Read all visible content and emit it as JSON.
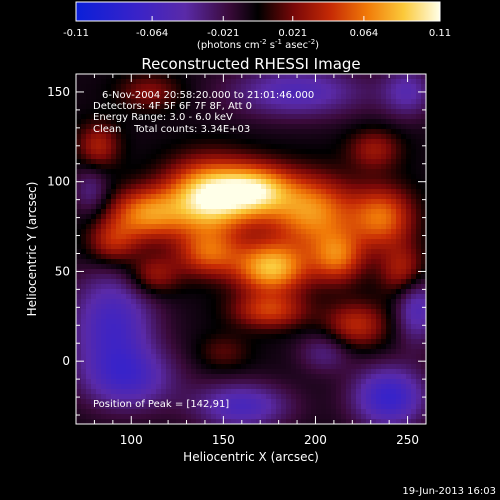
{
  "colorbar": {
    "tick_labels": [
      "-0.11",
      "-0.064",
      "-0.021",
      "0.021",
      "0.064",
      "0.11"
    ],
    "tick_values": [
      -0.11,
      -0.064,
      -0.021,
      0.021,
      0.064,
      0.11
    ],
    "range": [
      -0.11,
      0.11
    ],
    "unit_label": "(photons cm",
    "unit_exp1": "-2",
    "unit_mid": " s",
    "unit_exp2": "-1",
    "unit_tail": " asec",
    "unit_exp3": "-2",
    "unit_close": ")"
  },
  "title": "Reconstructed RHESSI Image",
  "annotations": {
    "time_range": "6-Nov-2004 20:58:20.000 to 21:01:46.000",
    "detectors": "Detectors: 4F 5F 6F 7F 8F, Att 0",
    "energy": "Energy Range: 3.0 - 6.0 keV",
    "clean": "Clean    Total counts: 3.34E+03",
    "peak": "Position of Peak = [142,91]"
  },
  "footer_timestamp": "19-Jun-2013 16:03",
  "colors": {
    "palette": [
      "#0a1fd9",
      "#3a23c8",
      "#5a2aa8",
      "#3a0a3a",
      "#000000",
      "#7a0808",
      "#c62a05",
      "#f17a08",
      "#fbc93a",
      "#ffffe8"
    ]
  },
  "chart_data": {
    "type": "heatmap",
    "title": "Reconstructed RHESSI Image",
    "xlabel": "Heliocentric X (arcsec)",
    "ylabel": "Heliocentric Y (arcsec)",
    "xlim": [
      70,
      260
    ],
    "ylim": [
      -35,
      160
    ],
    "xticks": [
      100,
      150,
      200,
      250
    ],
    "yticks": [
      0,
      50,
      100,
      150
    ],
    "xtick_labels": [
      "100",
      "150",
      "200",
      "250"
    ],
    "ytick_labels": [
      "0",
      "50",
      "100",
      "150"
    ],
    "value_range": [
      -0.11,
      0.11
    ],
    "peak_position": [
      142,
      91
    ],
    "grid": false,
    "sources": [
      {
        "x": 142,
        "y": 91,
        "sx": 16,
        "sy": 14,
        "amp": 0.11
      },
      {
        "x": 108,
        "y": 82,
        "sx": 14,
        "sy": 10,
        "amp": 0.07
      },
      {
        "x": 168,
        "y": 95,
        "sx": 14,
        "sy": 10,
        "amp": 0.085
      },
      {
        "x": 198,
        "y": 83,
        "sx": 16,
        "sy": 14,
        "amp": 0.075
      },
      {
        "x": 236,
        "y": 80,
        "sx": 12,
        "sy": 12,
        "amp": 0.065
      },
      {
        "x": 176,
        "y": 52,
        "sx": 14,
        "sy": 10,
        "amp": 0.09
      },
      {
        "x": 142,
        "y": 60,
        "sx": 12,
        "sy": 9,
        "amp": 0.055
      },
      {
        "x": 212,
        "y": 58,
        "sx": 10,
        "sy": 10,
        "amp": 0.06
      },
      {
        "x": 248,
        "y": 50,
        "sx": 9,
        "sy": 10,
        "amp": 0.045
      },
      {
        "x": 112,
        "y": 48,
        "sx": 10,
        "sy": 8,
        "amp": 0.04
      },
      {
        "x": 90,
        "y": 66,
        "sx": 10,
        "sy": 9,
        "amp": 0.045
      },
      {
        "x": 175,
        "y": 28,
        "sx": 14,
        "sy": 7,
        "amp": 0.05
      },
      {
        "x": 222,
        "y": 20,
        "sx": 12,
        "sy": 9,
        "amp": 0.045
      },
      {
        "x": 82,
        "y": 120,
        "sx": 8,
        "sy": 9,
        "amp": 0.04
      },
      {
        "x": 110,
        "y": 150,
        "sx": 12,
        "sy": 7,
        "amp": 0.03
      },
      {
        "x": 232,
        "y": 118,
        "sx": 10,
        "sy": 8,
        "amp": 0.035
      },
      {
        "x": 150,
        "y": 5,
        "sx": 10,
        "sy": 7,
        "amp": 0.02
      },
      {
        "x": 90,
        "y": 20,
        "sx": 16,
        "sy": 22,
        "amp": -0.06
      },
      {
        "x": 100,
        "y": -10,
        "sx": 18,
        "sy": 12,
        "amp": -0.045
      },
      {
        "x": 160,
        "y": -25,
        "sx": 18,
        "sy": 9,
        "amp": -0.055
      },
      {
        "x": 240,
        "y": -20,
        "sx": 14,
        "sy": 12,
        "amp": -0.07
      },
      {
        "x": 255,
        "y": 30,
        "sx": 8,
        "sy": 14,
        "amp": -0.05
      },
      {
        "x": 190,
        "y": 150,
        "sx": 26,
        "sy": 10,
        "amp": -0.05
      },
      {
        "x": 250,
        "y": 150,
        "sx": 10,
        "sy": 10,
        "amp": -0.04
      },
      {
        "x": 78,
        "y": 95,
        "sx": 7,
        "sy": 10,
        "amp": -0.03
      },
      {
        "x": 205,
        "y": 5,
        "sx": 10,
        "sy": 8,
        "amp": -0.03
      }
    ],
    "baseline": -0.005
  }
}
